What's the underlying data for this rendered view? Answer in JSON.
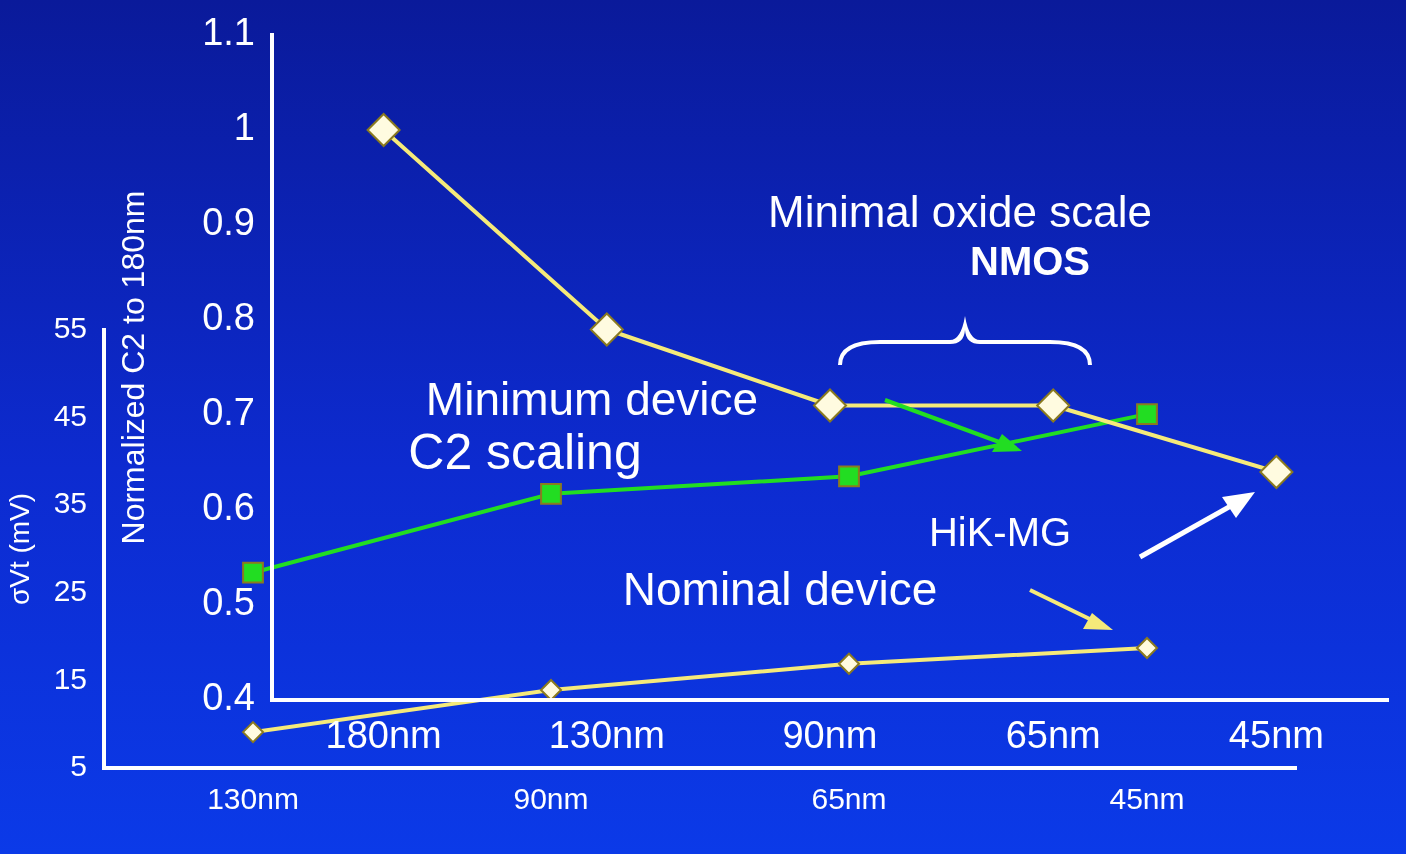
{
  "chart_data": [
    {
      "type": "line",
      "ylabel": "Normalized C2 to 180nm",
      "categories": [
        "180nm",
        "130nm",
        "90nm",
        "65nm",
        "45nm"
      ],
      "ylim": [
        0.4,
        1.1
      ],
      "yticks": [
        0.4,
        0.5,
        0.6,
        0.7,
        0.8,
        0.9,
        1,
        1.1
      ],
      "grid": false,
      "legend": false,
      "marker": "diamond",
      "series": [
        {
          "color": "#f5ea7a",
          "values": [
            1.0,
            0.79,
            0.71,
            0.71,
            0.64
          ]
        }
      ],
      "annotations": [
        "Minimal oxide scale",
        "NMOS",
        "C2 scaling",
        "HiK-MG"
      ]
    },
    {
      "type": "line",
      "ylabel": "σVt (mV)",
      "categories": [
        "130nm",
        "90nm",
        "65nm",
        "45nm"
      ],
      "ylim": [
        5,
        55
      ],
      "yticks": [
        5,
        15,
        25,
        35,
        45,
        55
      ],
      "grid": false,
      "legend": false,
      "series": [
        {
          "color": "#22dd22",
          "marker": "square",
          "values": [
            27.3,
            36.3,
            38.3,
            45.4
          ]
        },
        {
          "color": "#f5ea7a",
          "marker": "diamond",
          "values": [
            9.1,
            13.9,
            16.9,
            18.7
          ]
        }
      ],
      "annotations": [
        "Minimum device",
        "Nominal device"
      ]
    }
  ]
}
